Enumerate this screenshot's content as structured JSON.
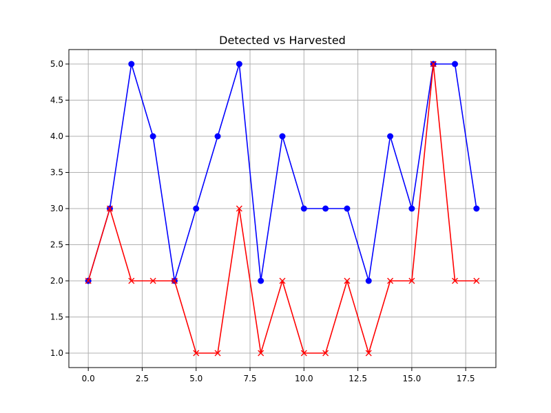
{
  "chart_data": {
    "type": "line",
    "title": "Detected vs Harvested",
    "xlabel": "",
    "ylabel": "",
    "xlim": [
      -0.9,
      18.9
    ],
    "ylim": [
      0.8,
      5.2
    ],
    "x_ticks": [
      0,
      2.5,
      5,
      7.5,
      10,
      12.5,
      15,
      17.5
    ],
    "x_tick_labels": [
      "0.0",
      "2.5",
      "5.0",
      "7.5",
      "10.0",
      "12.5",
      "15.0",
      "17.5"
    ],
    "y_ticks": [
      1,
      1.5,
      2,
      2.5,
      3,
      3.5,
      4,
      4.5,
      5
    ],
    "y_tick_labels": [
      "1.0",
      "1.5",
      "2.0",
      "2.5",
      "3.0",
      "3.5",
      "4.0",
      "4.5",
      "5.0"
    ],
    "grid": true,
    "x": [
      0,
      1,
      2,
      3,
      4,
      5,
      6,
      7,
      8,
      9,
      10,
      11,
      12,
      13,
      14,
      15,
      16,
      17,
      18
    ],
    "series": [
      {
        "color": "#0000ff",
        "marker": "circle",
        "values": [
          2,
          3,
          5,
          4,
          2,
          3,
          4,
          5,
          2,
          4,
          3,
          3,
          3,
          2,
          4,
          3,
          5,
          5,
          3
        ]
      },
      {
        "color": "#ff0000",
        "marker": "x",
        "values": [
          2,
          3,
          2,
          2,
          2,
          1,
          1,
          3,
          1,
          2,
          1,
          1,
          2,
          1,
          2,
          2,
          5,
          2,
          2
        ]
      }
    ]
  }
}
